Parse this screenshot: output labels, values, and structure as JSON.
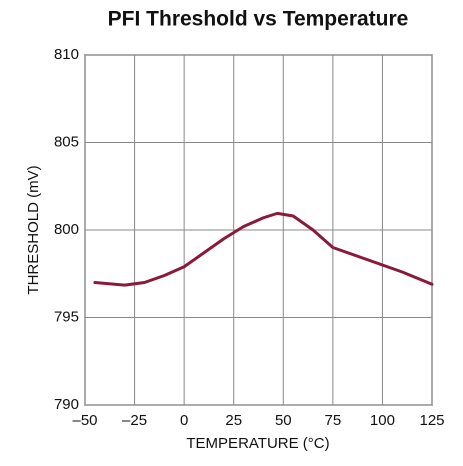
{
  "chart_data": {
    "type": "line",
    "title": "PFI Threshold vs Temperature",
    "xlabel": "TEMPERATURE (°C)",
    "ylabel": "THRESHOLD (mV)",
    "x": [
      -45,
      -30,
      -20,
      -10,
      0,
      10,
      20,
      30,
      40,
      47,
      55,
      65,
      75,
      90,
      100,
      110,
      125
    ],
    "series": [
      {
        "name": "Threshold",
        "color": "#8b1a3a",
        "values": [
          797.0,
          796.85,
          797.0,
          797.4,
          797.9,
          798.7,
          799.5,
          800.2,
          800.7,
          800.95,
          800.8,
          800.0,
          799.0,
          798.4,
          798.0,
          797.6,
          796.9
        ]
      }
    ],
    "xlim": [
      -50,
      125
    ],
    "xticks": [
      {
        "value": -50,
        "label": "–50"
      },
      {
        "value": -25,
        "label": "–25"
      },
      0,
      25,
      50,
      75,
      100,
      125
    ],
    "ylim": [
      790,
      810
    ],
    "yticks": [
      790,
      795,
      800,
      805,
      810
    ],
    "grid": true
  }
}
